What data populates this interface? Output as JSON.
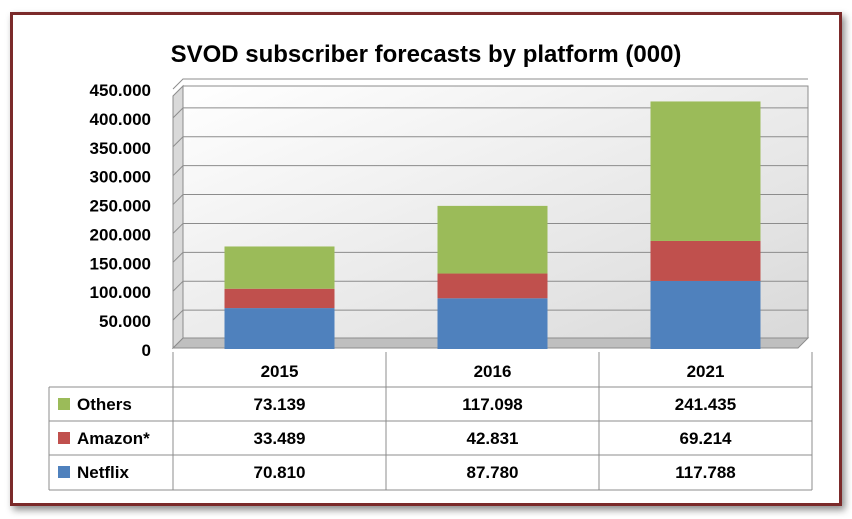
{
  "chart_data": {
    "type": "bar",
    "stacked": true,
    "title": "SVOD subscriber forecasts by platform (000)",
    "categories": [
      "2015",
      "2016",
      "2021"
    ],
    "series": [
      {
        "name": "Netflix",
        "values": [
          "70.810",
          "87.780",
          "117.788"
        ],
        "num": [
          70810,
          87780,
          117788
        ],
        "color": "#4f81bd"
      },
      {
        "name": "Amazon*",
        "values": [
          "33.489",
          "42.831",
          "69.214"
        ],
        "num": [
          33489,
          42831,
          69214
        ],
        "color": "#c0504d"
      },
      {
        "name": "Others",
        "values": [
          "73.139",
          "117.098",
          "241.435"
        ],
        "num": [
          73139,
          117098,
          241435
        ],
        "color": "#9bbb59"
      }
    ],
    "yticks": [
      "0",
      "50.000",
      "100.000",
      "150.000",
      "200.000",
      "250.000",
      "300.000",
      "350.000",
      "400.000",
      "450.000"
    ],
    "ylim": [
      0,
      450000
    ],
    "grid": true,
    "legend": "data table",
    "table_rows": [
      "Others",
      "Amazon*",
      "Netflix"
    ]
  }
}
